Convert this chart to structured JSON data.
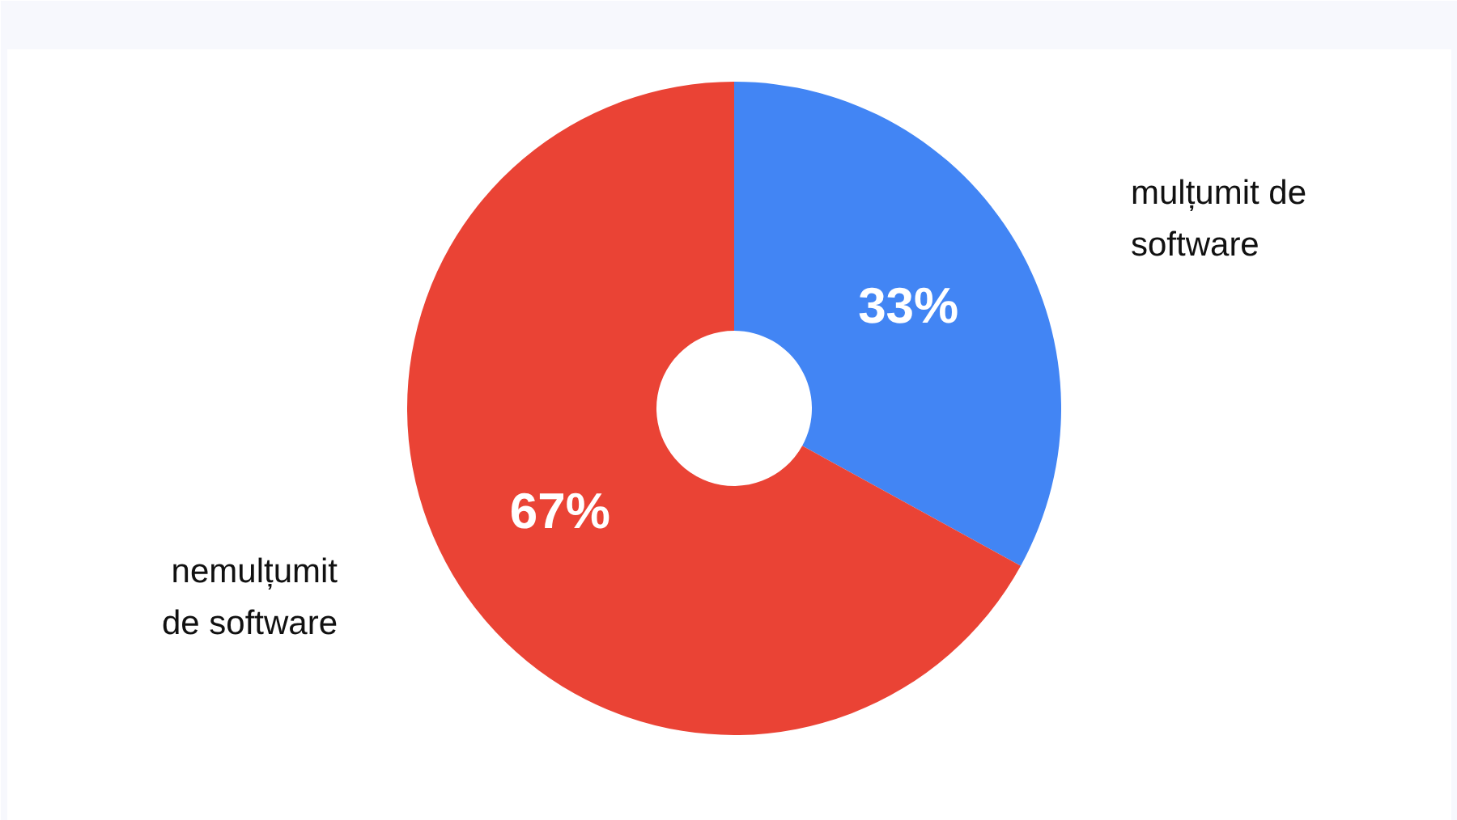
{
  "chart_data": {
    "type": "donut",
    "categories": [
      "mulțumit de software",
      "nemulțumit de software"
    ],
    "values": [
      33,
      67
    ],
    "colors": [
      "#4285f4",
      "#ea4335"
    ],
    "value_labels": [
      "33%",
      "67%"
    ]
  }
}
